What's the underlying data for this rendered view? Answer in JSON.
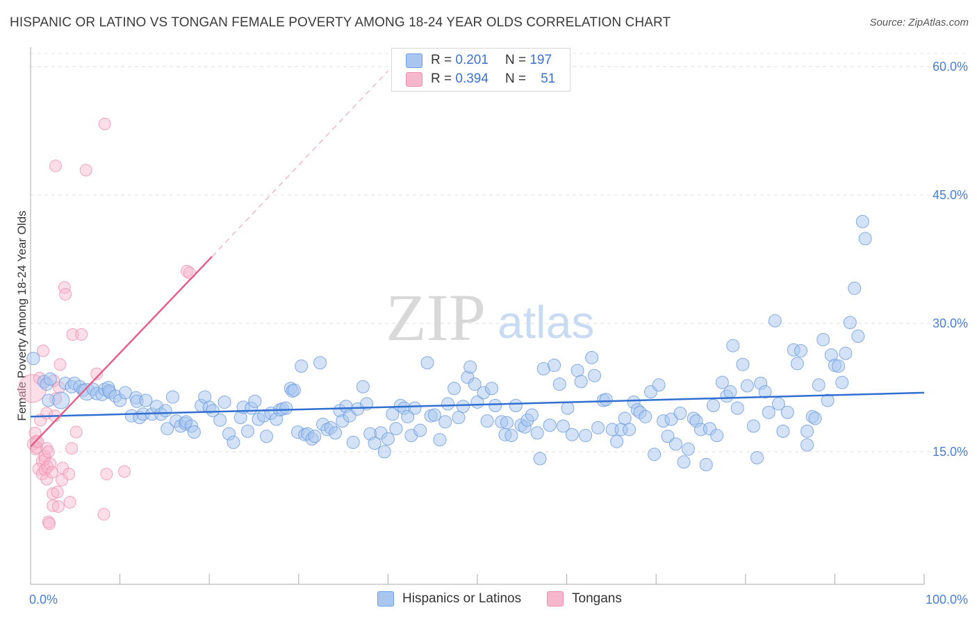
{
  "title": "HISPANIC OR LATINO VS TONGAN FEMALE POVERTY AMONG 18-24 YEAR OLDS CORRELATION CHART",
  "source": "Source: ZipAtlas.com",
  "watermark": {
    "zip": "ZIP",
    "atlas": "atlas"
  },
  "legend": {
    "rows": [
      {
        "r_label": "R =",
        "r_value": "0.201",
        "n_label": "N =",
        "n_value": "197",
        "color": "#a8c6f0"
      },
      {
        "r_label": "R =",
        "r_value": "0.394",
        "n_label": "N =",
        "n_value": "51",
        "color": "#f6b6cb"
      }
    ]
  },
  "bottom_legend": [
    "Hispanics or Latinos",
    "Tongans"
  ],
  "chart_data": {
    "type": "scatter",
    "title": "HISPANIC OR LATINO VS TONGAN FEMALE POVERTY AMONG 18-24 YEAR OLDS CORRELATION CHART",
    "xlabel": "",
    "ylabel": "Female Poverty Among 18-24 Year Olds",
    "xlim": [
      0,
      100
    ],
    "ylim": [
      0,
      63
    ],
    "x_tick_labels": [
      "0.0%",
      "100.0%"
    ],
    "y_ticks": [
      15,
      30,
      45,
      60
    ],
    "y_tick_labels": [
      "15.0%",
      "30.0%",
      "45.0%",
      "60.0%"
    ],
    "grid": "horizontal dashed",
    "legend_position": "top-center",
    "series": [
      {
        "name": "Hispanics or Latinos",
        "color": "#a8c6f0",
        "stroke": "#6f9ee0",
        "trend": {
          "x": [
            0,
            100
          ],
          "y": [
            19.1,
            21.9
          ],
          "color": "#2f6fd1"
        },
        "points": [
          [
            0.3,
            25.9
          ],
          [
            1.5,
            23.2
          ],
          [
            1.8,
            22.9
          ],
          [
            2.0,
            21.0
          ],
          [
            2.2,
            23.5
          ],
          [
            3.4,
            21.0
          ],
          [
            3.9,
            23.0
          ],
          [
            4.6,
            22.6
          ],
          [
            4.9,
            23.0
          ],
          [
            5.5,
            22.6
          ],
          [
            5.9,
            22.2
          ],
          [
            6.3,
            22.0
          ],
          [
            7.0,
            22.3
          ],
          [
            7.4,
            21.8
          ],
          [
            8.0,
            21.7
          ],
          [
            8.3,
            22.3
          ],
          [
            8.7,
            22.5
          ],
          [
            8.9,
            21.9
          ],
          [
            8.8,
            22.1
          ],
          [
            9.5,
            21.5
          ],
          [
            10.0,
            21.0
          ],
          [
            10.6,
            21.9
          ],
          [
            11.3,
            19.2
          ],
          [
            11.8,
            21.3
          ],
          [
            11.9,
            20.9
          ],
          [
            12.2,
            19.0
          ],
          [
            12.6,
            19.4
          ],
          [
            12.9,
            21.0
          ],
          [
            13.6,
            19.4
          ],
          [
            14.1,
            20.3
          ],
          [
            14.6,
            19.4
          ],
          [
            15.1,
            19.8
          ],
          [
            15.3,
            17.7
          ],
          [
            15.9,
            21.4
          ],
          [
            16.3,
            18.6
          ],
          [
            16.8,
            18.0
          ],
          [
            17.3,
            18.3
          ],
          [
            17.4,
            18.5
          ],
          [
            18.0,
            18.0
          ],
          [
            18.3,
            17.3
          ],
          [
            19.1,
            20.4
          ],
          [
            19.5,
            21.4
          ],
          [
            20.0,
            20.2
          ],
          [
            20.4,
            19.8
          ],
          [
            21.2,
            18.7
          ],
          [
            21.7,
            20.8
          ],
          [
            22.2,
            17.1
          ],
          [
            22.7,
            16.1
          ],
          [
            23.5,
            19.0
          ],
          [
            23.8,
            20.2
          ],
          [
            24.3,
            17.4
          ],
          [
            24.7,
            20.1
          ],
          [
            25.1,
            20.9
          ],
          [
            25.5,
            18.8
          ],
          [
            26.1,
            19.2
          ],
          [
            26.4,
            16.8
          ],
          [
            26.9,
            19.5
          ],
          [
            27.5,
            18.8
          ],
          [
            27.9,
            19.9
          ],
          [
            28.2,
            20.0
          ],
          [
            28.6,
            20.1
          ],
          [
            29.1,
            22.4
          ],
          [
            29.3,
            22.1
          ],
          [
            29.5,
            22.2
          ],
          [
            29.9,
            17.3
          ],
          [
            30.3,
            25.0
          ],
          [
            30.7,
            17.0
          ],
          [
            31.0,
            17.1
          ],
          [
            31.5,
            16.5
          ],
          [
            31.8,
            16.8
          ],
          [
            32.4,
            25.4
          ],
          [
            32.7,
            18.2
          ],
          [
            33.2,
            17.6
          ],
          [
            33.6,
            17.8
          ],
          [
            34.1,
            17.2
          ],
          [
            34.6,
            19.8
          ],
          [
            34.9,
            18.6
          ],
          [
            35.3,
            20.3
          ],
          [
            35.7,
            19.2
          ],
          [
            36.1,
            16.1
          ],
          [
            36.6,
            20.0
          ],
          [
            37.2,
            22.6
          ],
          [
            37.6,
            20.6
          ],
          [
            38.0,
            17.1
          ],
          [
            38.5,
            16.0
          ],
          [
            39.2,
            17.2
          ],
          [
            39.6,
            15.0
          ],
          [
            40.0,
            16.5
          ],
          [
            40.5,
            19.4
          ],
          [
            40.9,
            17.7
          ],
          [
            41.4,
            20.4
          ],
          [
            41.8,
            20.1
          ],
          [
            42.2,
            19.1
          ],
          [
            42.6,
            16.9
          ],
          [
            43.0,
            20.1
          ],
          [
            43.6,
            17.5
          ],
          [
            44.4,
            25.4
          ],
          [
            44.8,
            19.2
          ],
          [
            45.2,
            19.3
          ],
          [
            45.8,
            16.4
          ],
          [
            46.4,
            18.5
          ],
          [
            46.7,
            20.6
          ],
          [
            47.4,
            22.4
          ],
          [
            47.9,
            19.0
          ],
          [
            48.4,
            20.3
          ],
          [
            48.9,
            23.7
          ],
          [
            49.2,
            24.9
          ],
          [
            49.7,
            22.9
          ],
          [
            50.0,
            20.8
          ],
          [
            50.7,
            21.9
          ],
          [
            51.1,
            18.6
          ],
          [
            51.6,
            22.4
          ],
          [
            52.0,
            20.4
          ],
          [
            52.7,
            18.5
          ],
          [
            53.1,
            17.0
          ],
          [
            53.3,
            18.4
          ],
          [
            53.8,
            16.9
          ],
          [
            54.3,
            20.4
          ],
          [
            54.9,
            18.1
          ],
          [
            55.3,
            17.9
          ],
          [
            55.6,
            18.7
          ],
          [
            56.1,
            19.3
          ],
          [
            56.7,
            17.2
          ],
          [
            57.0,
            14.2
          ],
          [
            57.4,
            24.7
          ],
          [
            58.1,
            18.1
          ],
          [
            58.6,
            25.1
          ],
          [
            59.2,
            22.9
          ],
          [
            59.6,
            18.0
          ],
          [
            60.1,
            20.1
          ],
          [
            60.6,
            17.0
          ],
          [
            61.2,
            24.5
          ],
          [
            61.6,
            23.2
          ],
          [
            62.1,
            16.9
          ],
          [
            62.8,
            26.0
          ],
          [
            63.1,
            23.9
          ],
          [
            63.5,
            17.8
          ],
          [
            64.1,
            21.0
          ],
          [
            64.4,
            21.1
          ],
          [
            65.1,
            17.6
          ],
          [
            65.6,
            16.2
          ],
          [
            66.1,
            17.6
          ],
          [
            66.5,
            18.9
          ],
          [
            67.0,
            17.6
          ],
          [
            67.5,
            20.8
          ],
          [
            67.9,
            19.9
          ],
          [
            68.2,
            19.6
          ],
          [
            68.8,
            19.1
          ],
          [
            69.4,
            22.0
          ],
          [
            69.8,
            14.7
          ],
          [
            70.3,
            22.8
          ],
          [
            70.8,
            18.6
          ],
          [
            71.3,
            16.8
          ],
          [
            71.7,
            18.8
          ],
          [
            72.2,
            15.9
          ],
          [
            72.7,
            19.5
          ],
          [
            73.1,
            13.8
          ],
          [
            73.6,
            15.3
          ],
          [
            74.2,
            18.9
          ],
          [
            74.5,
            18.6
          ],
          [
            75.0,
            17.6
          ],
          [
            75.6,
            13.5
          ],
          [
            76.0,
            17.7
          ],
          [
            76.4,
            20.4
          ],
          [
            76.8,
            16.9
          ],
          [
            77.4,
            23.1
          ],
          [
            77.9,
            21.5
          ],
          [
            78.3,
            22.0
          ],
          [
            78.6,
            27.4
          ],
          [
            79.1,
            20.1
          ],
          [
            79.7,
            25.2
          ],
          [
            80.2,
            22.7
          ],
          [
            80.9,
            18.0
          ],
          [
            81.3,
            14.3
          ],
          [
            81.7,
            23.0
          ],
          [
            82.2,
            22.0
          ],
          [
            82.6,
            19.6
          ],
          [
            83.3,
            30.3
          ],
          [
            83.7,
            20.6
          ],
          [
            84.2,
            17.4
          ],
          [
            84.7,
            19.6
          ],
          [
            85.4,
            26.9
          ],
          [
            85.8,
            25.3
          ],
          [
            86.2,
            26.8
          ],
          [
            86.9,
            17.4
          ],
          [
            86.9,
            15.8
          ],
          [
            87.5,
            19.1
          ],
          [
            87.8,
            18.9
          ],
          [
            88.2,
            22.8
          ],
          [
            88.7,
            28.1
          ],
          [
            89.2,
            21.0
          ],
          [
            89.6,
            26.3
          ],
          [
            90.0,
            25.1
          ],
          [
            90.4,
            25.0
          ],
          [
            90.8,
            23.1
          ],
          [
            91.2,
            26.5
          ],
          [
            91.7,
            30.1
          ],
          [
            92.2,
            34.1
          ],
          [
            92.6,
            28.5
          ],
          [
            93.1,
            41.9
          ],
          [
            93.4,
            39.9
          ]
        ],
        "point_sizes": {
          "large": [
            [
              3.4,
              21.0
            ],
            [
              6.3,
              22.0
            ]
          ]
        }
      },
      {
        "name": "Tongans",
        "color": "#f6b6cb",
        "stroke": "#ef8fae",
        "trend": {
          "x": [
            0,
            20.3
          ],
          "y": [
            15.6,
            37.8
          ],
          "color": "#e35e8b",
          "extension": {
            "x": [
              20.3,
              40
            ],
            "y": [
              37.8,
              59.5
            ],
            "dashed": true
          }
        },
        "points": [
          [
            0.2,
            22.4
          ],
          [
            0.3,
            15.9
          ],
          [
            0.5,
            17.2
          ],
          [
            0.6,
            16.2
          ],
          [
            0.6,
            15.3
          ],
          [
            0.7,
            15.5
          ],
          [
            0.8,
            16.2
          ],
          [
            0.9,
            13.0
          ],
          [
            1.0,
            23.6
          ],
          [
            1.1,
            18.7
          ],
          [
            1.3,
            13.9
          ],
          [
            1.3,
            12.4
          ],
          [
            1.4,
            26.8
          ],
          [
            1.6,
            14.1
          ],
          [
            1.6,
            14.5
          ],
          [
            1.6,
            12.9
          ],
          [
            1.8,
            19.5
          ],
          [
            1.8,
            11.8
          ],
          [
            1.8,
            15.4
          ],
          [
            1.9,
            13.2
          ],
          [
            2.0,
            6.8
          ],
          [
            2.0,
            15.0
          ],
          [
            2.1,
            6.6
          ],
          [
            2.2,
            13.6
          ],
          [
            2.4,
            12.6
          ],
          [
            2.5,
            8.7
          ],
          [
            2.5,
            10.1
          ],
          [
            2.6,
            23.3
          ],
          [
            2.7,
            19.2
          ],
          [
            2.8,
            21.2
          ],
          [
            2.8,
            48.4
          ],
          [
            3.0,
            10.3
          ],
          [
            3.1,
            8.6
          ],
          [
            3.2,
            22.5
          ],
          [
            3.3,
            25.2
          ],
          [
            3.5,
            11.7
          ],
          [
            3.6,
            13.1
          ],
          [
            3.8,
            34.2
          ],
          [
            3.9,
            33.4
          ],
          [
            4.3,
            12.4
          ],
          [
            4.4,
            9.1
          ],
          [
            4.6,
            15.4
          ],
          [
            4.7,
            28.7
          ],
          [
            5.1,
            17.3
          ],
          [
            5.7,
            28.7
          ],
          [
            6.2,
            47.9
          ],
          [
            7.4,
            24.1
          ],
          [
            8.2,
            7.7
          ],
          [
            8.3,
            53.3
          ],
          [
            8.5,
            12.4
          ],
          [
            10.5,
            12.7
          ],
          [
            17.5,
            36.1
          ],
          [
            17.8,
            35.9
          ]
        ],
        "point_sizes": {
          "large": [
            [
              0.2,
              22.4
            ]
          ]
        }
      }
    ]
  }
}
